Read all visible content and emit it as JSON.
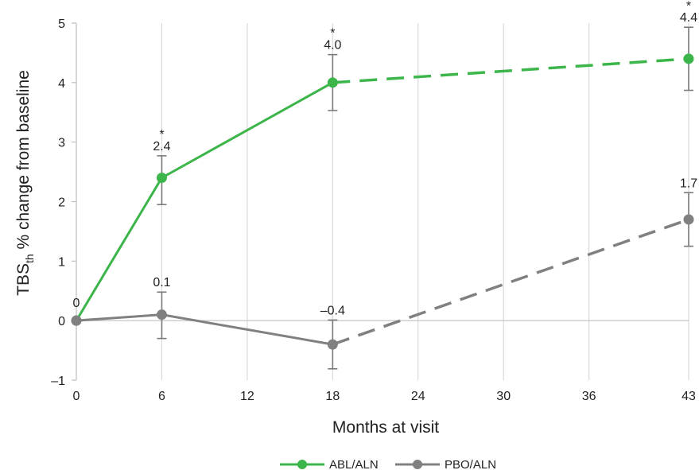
{
  "chart_data": {
    "type": "line",
    "title": "",
    "xlabel": "Months at visit",
    "ylabel": {
      "main": "TBS",
      "sub": "th",
      "rest": " % change from baseline"
    },
    "x_ticks": [
      "0",
      "6",
      "12",
      "18",
      "24",
      "30",
      "36",
      "43"
    ],
    "y_ticks": [
      "–1",
      "0",
      "1",
      "2",
      "3",
      "4",
      "5"
    ],
    "ylim": [
      -1,
      5
    ],
    "xlim": [
      0,
      43
    ],
    "grid": "vertical",
    "legend_position": "bottom-center",
    "series": [
      {
        "name": "ABL/ALN",
        "color": "#3cb54a",
        "x": [
          0,
          6,
          18,
          43
        ],
        "y": [
          0,
          2.4,
          4.0,
          4.4
        ],
        "err_low": [
          null,
          1.95,
          3.53,
          3.87
        ],
        "err_high": [
          null,
          2.77,
          4.47,
          4.93
        ],
        "labels": [
          "0",
          "2.4",
          "4.0",
          "4.4"
        ],
        "significant": [
          false,
          true,
          true,
          true
        ],
        "dashed_from_index": 2
      },
      {
        "name": "PBO/ALN",
        "color": "#808080",
        "x": [
          0,
          6,
          18,
          43
        ],
        "y": [
          0,
          0.1,
          -0.4,
          1.7
        ],
        "err_low": [
          null,
          -0.3,
          -0.81,
          1.25
        ],
        "err_high": [
          null,
          0.48,
          0.01,
          2.15
        ],
        "labels": [
          "",
          "0.1",
          "–0.4",
          "1.7"
        ],
        "significant": [
          false,
          false,
          false,
          false
        ],
        "dashed_from_index": 2
      }
    ],
    "significance_marker": "*"
  }
}
